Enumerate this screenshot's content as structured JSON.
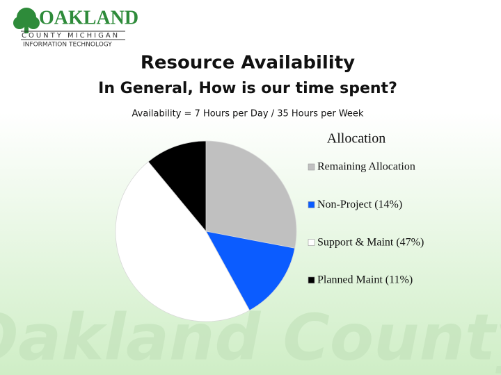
{
  "header": {
    "logo_name": "OAKLAND",
    "logo_county": "COUNTY MICHIGAN",
    "logo_dept": "INFORMATION TECHNOLOGY",
    "title": "Resource Availability",
    "subtitle": "In General, How is our time spent?",
    "note": "Availability = 7 Hours per Day / 35 Hours per Week",
    "watermark": "Oakland County"
  },
  "chart_data": {
    "type": "pie",
    "legend_title": "Allocation",
    "legend_position": "right",
    "categories": [
      "Remaining Allocation",
      "Non-Project (14%)",
      "Support & Maint (47%)",
      "Planned Maint (11%)"
    ],
    "values": [
      28,
      14,
      47,
      11
    ],
    "colors": [
      "#c0c0c0",
      "#0b5cff",
      "#ffffff",
      "#000000"
    ]
  }
}
